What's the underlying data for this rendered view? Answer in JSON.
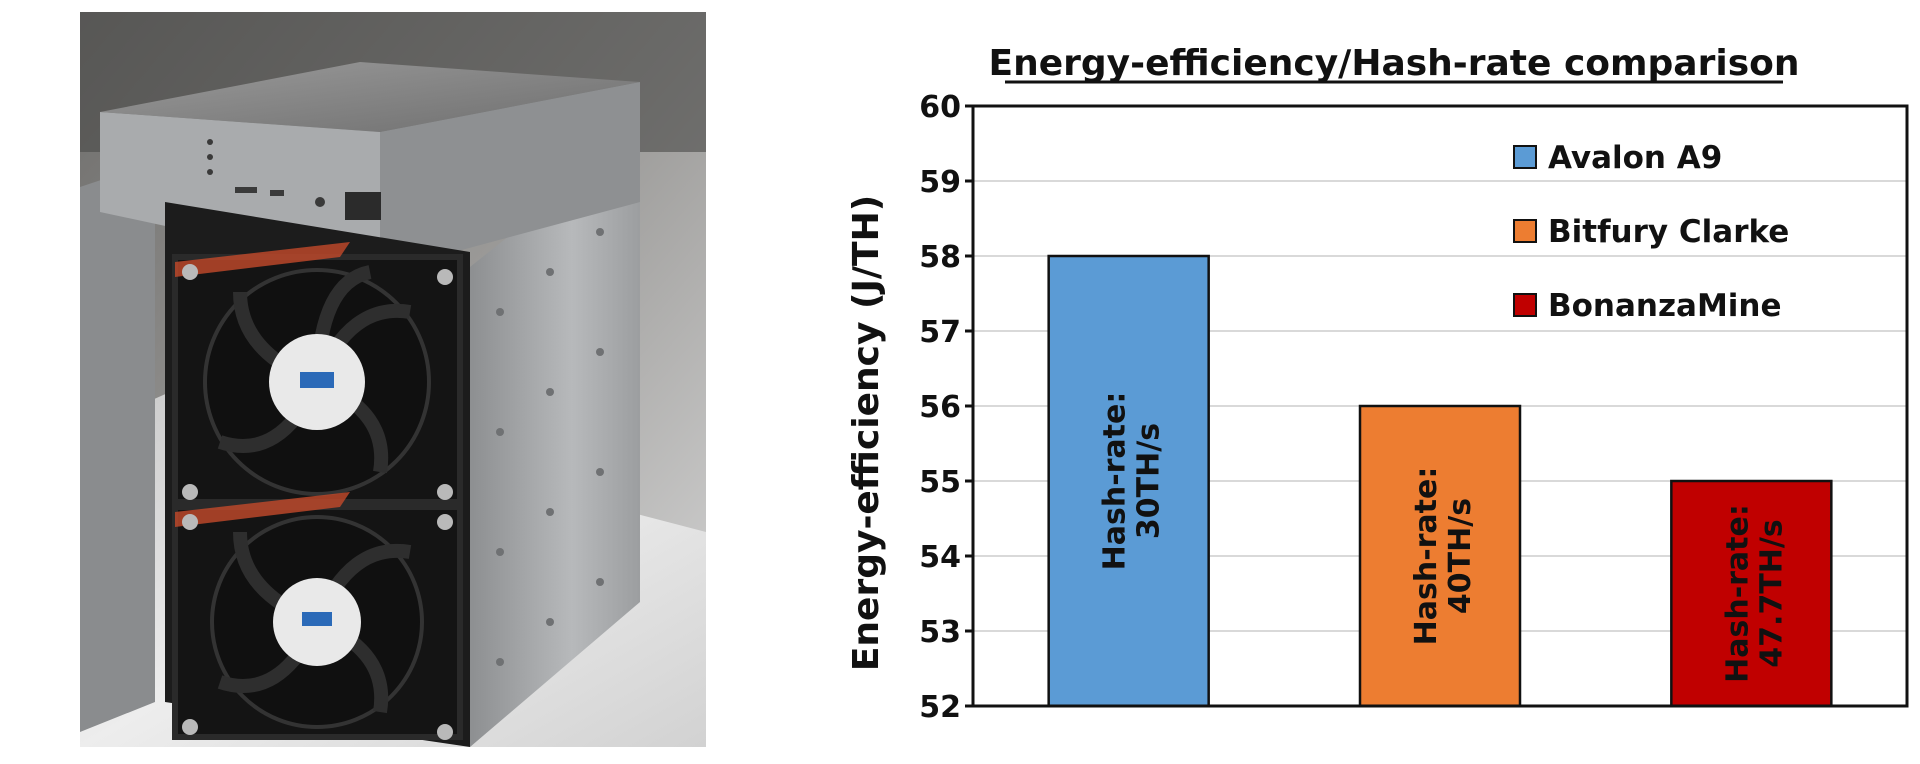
{
  "photo": {
    "subject": "mining-rig-photo-icon"
  },
  "chart_data": {
    "type": "bar",
    "title": "Energy-efficiency/Hash-rate comparison",
    "xlabel": "",
    "ylabel": "Energy-efficiency (J/TH)",
    "ylim": [
      52,
      60
    ],
    "yticks": [
      52,
      53,
      54,
      55,
      56,
      57,
      58,
      59,
      60
    ],
    "grid": true,
    "legend_position": "top-right",
    "categories": [
      "Avalon A9",
      "Bitfury Clarke",
      "BonanzaMine"
    ],
    "values": [
      58,
      56,
      55
    ],
    "colors": [
      "#5b9bd5",
      "#ed7d31",
      "#c00000"
    ],
    "bar_labels": [
      [
        "Hash-rate:",
        "30TH/s"
      ],
      [
        "Hash-rate:",
        "40TH/s"
      ],
      [
        "Hash-rate:",
        "47.7TH/s"
      ]
    ]
  }
}
